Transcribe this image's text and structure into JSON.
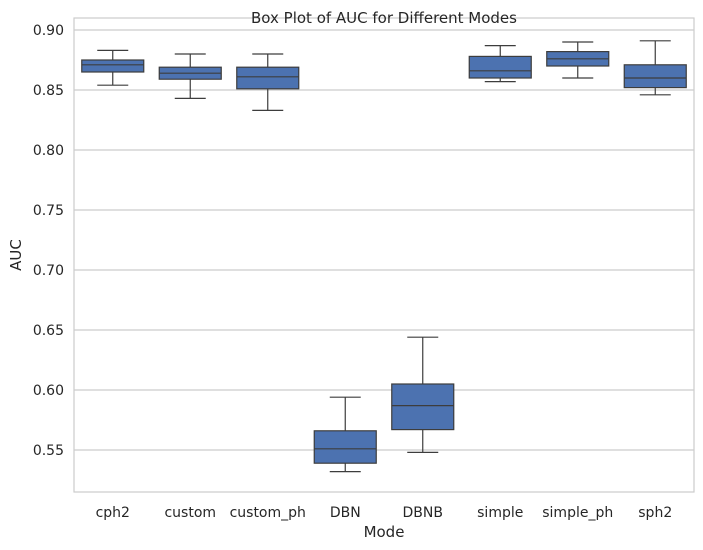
{
  "chart_data": {
    "type": "box",
    "title": "Box Plot of AUC for Different Modes",
    "xlabel": "Mode",
    "ylabel": "AUC",
    "ylim": [
      0.515,
      0.91
    ],
    "yticks": [
      "0.55",
      "0.60",
      "0.65",
      "0.70",
      "0.75",
      "0.80",
      "0.85",
      "0.90"
    ],
    "grid": "horizontal",
    "box_color": "#4c72b0",
    "line_color": "#3d3d3d",
    "categories": [
      "cph2",
      "custom",
      "custom_ph",
      "DBN",
      "DBNB",
      "simple",
      "simple_ph",
      "sph2"
    ],
    "boxes": [
      {
        "category": "cph2",
        "whisker_low": 0.854,
        "q1": 0.865,
        "median": 0.871,
        "q3": 0.875,
        "whisker_high": 0.883
      },
      {
        "category": "custom",
        "whisker_low": 0.843,
        "q1": 0.859,
        "median": 0.864,
        "q3": 0.869,
        "whisker_high": 0.88
      },
      {
        "category": "custom_ph",
        "whisker_low": 0.833,
        "q1": 0.851,
        "median": 0.861,
        "q3": 0.869,
        "whisker_high": 0.88
      },
      {
        "category": "DBN",
        "whisker_low": 0.532,
        "q1": 0.539,
        "median": 0.551,
        "q3": 0.566,
        "whisker_high": 0.594
      },
      {
        "category": "DBNB",
        "whisker_low": 0.548,
        "q1": 0.567,
        "median": 0.587,
        "q3": 0.605,
        "whisker_high": 0.644
      },
      {
        "category": "simple",
        "whisker_low": 0.857,
        "q1": 0.86,
        "median": 0.866,
        "q3": 0.878,
        "whisker_high": 0.887
      },
      {
        "category": "simple_ph",
        "whisker_low": 0.86,
        "q1": 0.87,
        "median": 0.876,
        "q3": 0.882,
        "whisker_high": 0.89
      },
      {
        "category": "sph2",
        "whisker_low": 0.846,
        "q1": 0.852,
        "median": 0.86,
        "q3": 0.871,
        "whisker_high": 0.891
      }
    ]
  }
}
